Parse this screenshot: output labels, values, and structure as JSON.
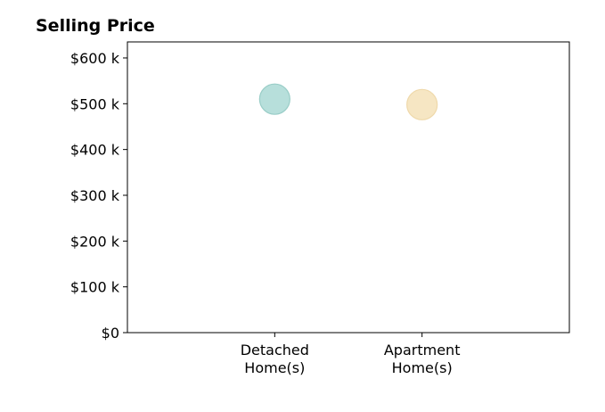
{
  "chart_data": {
    "type": "scatter",
    "title": "Selling Price",
    "xlabel": "",
    "ylabel": "",
    "categories": [
      "Detached\nHome(s)",
      "Apartment\nHome(s)"
    ],
    "values": [
      510000,
      498000
    ],
    "colors": [
      "#b7dfdb",
      "#f6e6c3"
    ],
    "edge_colors": [
      "#99cdc7",
      "#efd9ab"
    ],
    "ylim": [
      0,
      635000
    ],
    "yticks": [
      0,
      100000,
      200000,
      300000,
      400000,
      500000,
      600000
    ],
    "ytick_labels": [
      "$0",
      "$100 k",
      "$200 k",
      "$300 k",
      "$400 k",
      "$500 k",
      "$600 k"
    ],
    "xlim": [
      -1,
      2
    ],
    "grid": false,
    "legend": "none"
  }
}
